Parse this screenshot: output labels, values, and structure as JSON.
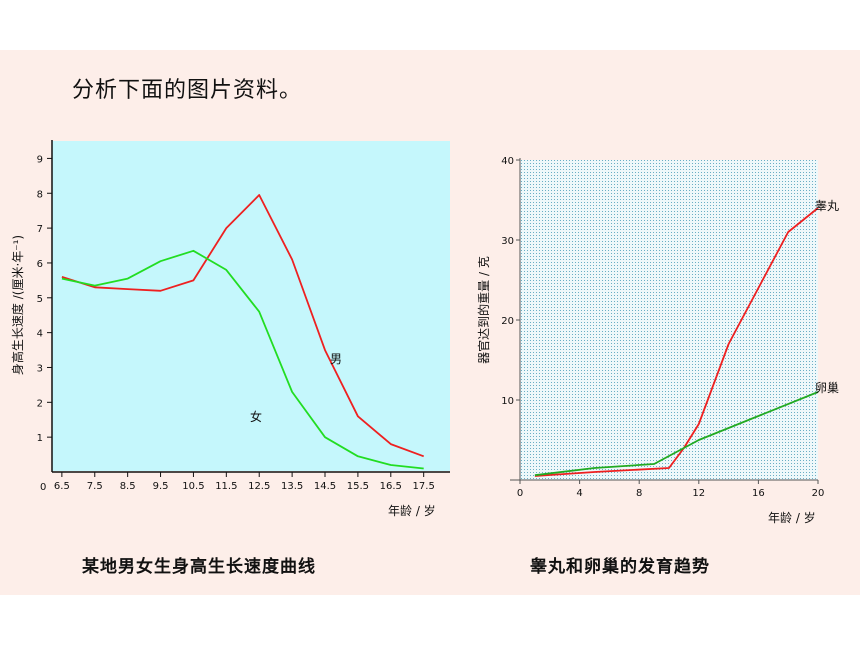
{
  "heading": "分析下面的图片资料。",
  "charts": [
    {
      "caption": "某地男女生身高生长速度曲线",
      "ylabel": "身高生长速度 /(厘米·年⁻¹)",
      "xlabel": "年龄 / 岁",
      "origin_label": "0",
      "y_ticks": [
        "1",
        "2",
        "3",
        "4",
        "5",
        "6",
        "7",
        "8",
        "9"
      ],
      "x_ticks": [
        "6.5",
        "7.5",
        "8.5",
        "9.5",
        "10.5",
        "11.5",
        "12.5",
        "13.5",
        "14.5",
        "15.5",
        "16.5",
        "17.5"
      ]
    },
    {
      "caption": "睾丸和卵巢的发育趋势",
      "ylabel": "器官达到的重量 / 克",
      "xlabel": "年龄 / 岁",
      "y_ticks": [
        "10",
        "20",
        "30",
        "40"
      ],
      "x_ticks": [
        "0",
        "4",
        "8",
        "12",
        "16",
        "20"
      ]
    }
  ],
  "chart_data": [
    {
      "type": "line",
      "xlabel": "年龄 / 岁",
      "ylabel": "身高生长速度 /(厘米·年⁻¹)",
      "xlim": [
        6.2,
        18.3
      ],
      "ylim": [
        0,
        9.5
      ],
      "grid": false,
      "series": [
        {
          "name": "男",
          "color": "#ee2020",
          "x": [
            6.5,
            7.5,
            8.5,
            9.5,
            10.5,
            11.5,
            12.5,
            13.5,
            14.5,
            15.5,
            16.5,
            17.5
          ],
          "y": [
            5.6,
            5.3,
            5.25,
            5.2,
            5.5,
            7.0,
            7.95,
            6.1,
            3.5,
            1.6,
            0.8,
            0.45
          ]
        },
        {
          "name": "女",
          "color": "#22dd22",
          "x": [
            6.5,
            7.5,
            8.5,
            9.5,
            10.5,
            11.5,
            12.5,
            13.5,
            14.5,
            15.5,
            16.5,
            17.5
          ],
          "y": [
            5.55,
            5.35,
            5.55,
            6.05,
            6.35,
            5.8,
            4.6,
            2.3,
            1.0,
            0.45,
            0.2,
            0.1
          ]
        }
      ]
    },
    {
      "type": "line",
      "xlabel": "年龄 / 岁",
      "ylabel": "器官达到的重量 / 克",
      "xlim": [
        0,
        20
      ],
      "ylim": [
        0,
        40
      ],
      "grid": true,
      "series": [
        {
          "name": "睾丸",
          "color": "#ee2020",
          "x": [
            1,
            5,
            10,
            11,
            12,
            14,
            16,
            18,
            20
          ],
          "y": [
            0.5,
            1,
            1.5,
            4,
            7,
            17,
            24,
            31,
            34
          ]
        },
        {
          "name": "卵巢",
          "color": "#22aa22",
          "x": [
            1,
            5,
            9,
            10,
            12,
            16,
            20
          ],
          "y": [
            0.6,
            1.5,
            2,
            3,
            5,
            8,
            11
          ]
        }
      ]
    }
  ],
  "colors": {
    "slide_bg": "#fdeee9",
    "plot_bg": "#c5f7fc",
    "male": "#ee2020",
    "female": "#22dd22"
  }
}
